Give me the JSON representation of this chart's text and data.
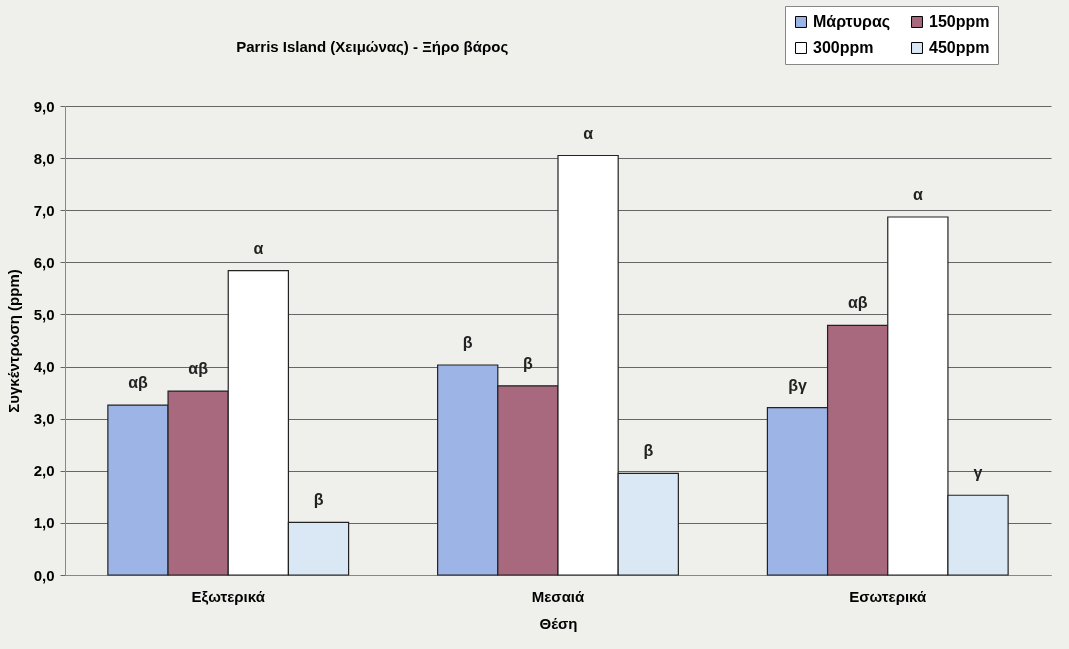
{
  "chart_data": {
    "type": "bar",
    "title": "Parris Island (Χειμώνας) - Ξήρο βάρος",
    "xlabel": "Θέση",
    "ylabel": "Συγκέντρωση (ppm)",
    "categories": [
      "Εξωτερικά",
      "Μεσαιά",
      "Εσωτερικά"
    ],
    "series": [
      {
        "name": "Μάρτυρας",
        "color": "#9db5e6",
        "values": [
          3.26,
          4.03,
          3.21
        ],
        "value_labels": [
          "αβ",
          "β",
          "βγ"
        ]
      },
      {
        "name": "150ppm",
        "color": "#a8687e",
        "values": [
          3.53,
          3.63,
          4.79
        ],
        "value_labels": [
          "αβ",
          "β",
          "αβ"
        ]
      },
      {
        "name": "300ppm",
        "color": "#ffffff",
        "values": [
          5.84,
          8.05,
          6.87
        ],
        "value_labels": [
          "α",
          "α",
          "α"
        ]
      },
      {
        "name": "450ppm",
        "color": "#dae8f5",
        "values": [
          1.01,
          1.95,
          1.53
        ],
        "value_labels": [
          "β",
          "β",
          "γ"
        ]
      }
    ],
    "ylim": [
      0,
      9
    ],
    "yticks": [
      {
        "value": 0,
        "label": "0,0"
      },
      {
        "value": 1,
        "label": "1,0"
      },
      {
        "value": 2,
        "label": "2,0"
      },
      {
        "value": 3,
        "label": "3,0"
      },
      {
        "value": 4,
        "label": "4,0"
      },
      {
        "value": 5,
        "label": "5,0"
      },
      {
        "value": 6,
        "label": "6,0"
      },
      {
        "value": 7,
        "label": "7,0"
      },
      {
        "value": 8,
        "label": "8,0"
      },
      {
        "value": 9,
        "label": "9,0"
      }
    ],
    "grid": "y",
    "legend": "top right"
  }
}
